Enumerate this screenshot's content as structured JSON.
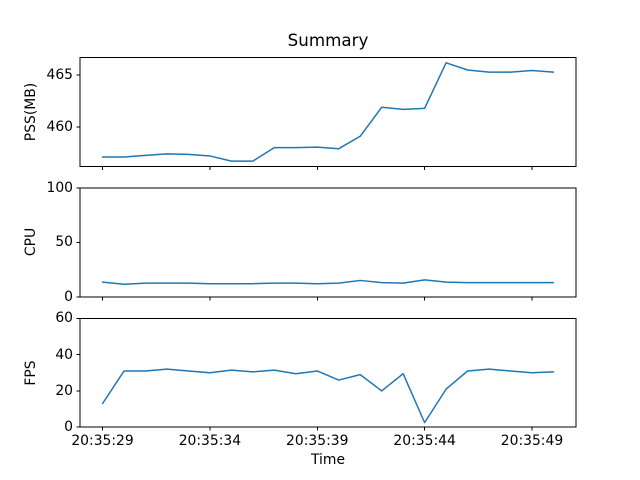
{
  "chart_data": {
    "type": "line",
    "title": "Summary",
    "xlabel": "Time",
    "line_color": "#1f77b4",
    "axis_color": "#000000",
    "x_categories": [
      "20:35:29",
      "20:35:30",
      "20:35:31",
      "20:35:32",
      "20:35:33",
      "20:35:34",
      "20:35:35",
      "20:35:36",
      "20:35:37",
      "20:35:38",
      "20:35:39",
      "20:35:40",
      "20:35:41",
      "20:35:42",
      "20:35:43",
      "20:35:44",
      "20:35:45",
      "20:35:46",
      "20:35:47",
      "20:35:48",
      "20:35:49",
      "20:35:50"
    ],
    "xtick_indices": [
      0,
      5,
      10,
      15,
      20
    ],
    "xtick_labels": [
      "20:35:29",
      "20:35:34",
      "20:35:39",
      "20:35:44",
      "20:35:49"
    ],
    "grid": false,
    "legend": false,
    "subplots": [
      {
        "id": "pss",
        "ylabel": "PSS(MB)",
        "ylim": [
          456.2,
          466.7
        ],
        "yticks": [
          460,
          465
        ],
        "values": [
          457.1,
          457.1,
          457.25,
          457.4,
          457.35,
          457.2,
          456.7,
          456.7,
          458.0,
          458.0,
          458.05,
          457.9,
          459.1,
          461.9,
          461.7,
          461.8,
          466.2,
          465.5,
          465.3,
          465.3,
          465.45,
          465.3
        ]
      },
      {
        "id": "cpu",
        "ylabel": "CPU",
        "ylim": [
          0,
          100
        ],
        "yticks": [
          0,
          50,
          100
        ],
        "values": [
          13.5,
          11.5,
          12.5,
          12.5,
          12.5,
          12.0,
          12.0,
          12.0,
          12.5,
          12.5,
          12.0,
          12.5,
          15.0,
          13.0,
          12.5,
          15.5,
          13.5,
          13.0,
          13.0,
          13.0,
          13.0,
          13.0
        ]
      },
      {
        "id": "fps",
        "ylabel": "FPS",
        "ylim": [
          0,
          60
        ],
        "yticks": [
          0,
          20,
          40,
          60
        ],
        "values": [
          13,
          31,
          31,
          32,
          31,
          30,
          31.5,
          30.5,
          31.5,
          29.5,
          31,
          26,
          29,
          20,
          29.5,
          2.5,
          21,
          31,
          32,
          31,
          30,
          30.5
        ]
      }
    ]
  }
}
